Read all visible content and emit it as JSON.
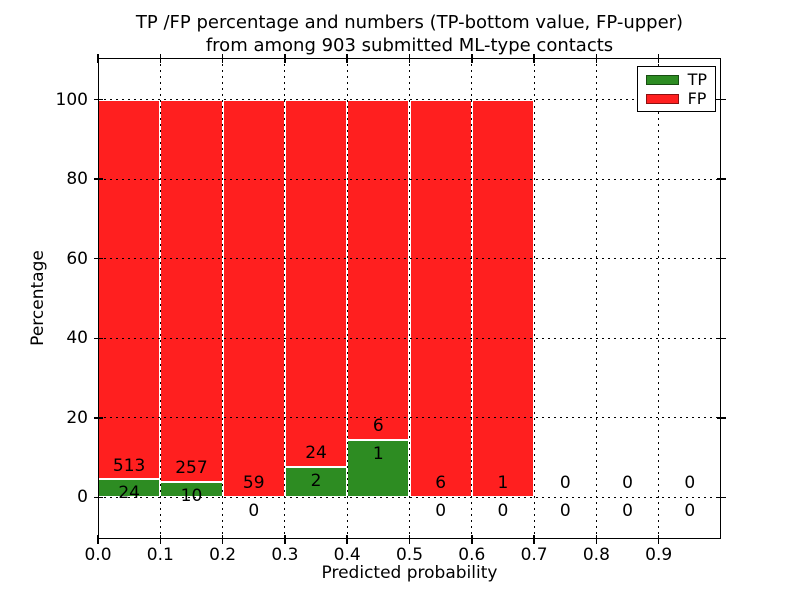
{
  "figure": {
    "title_lines": [
      "TP /FP percentage and numbers (TP-bottom value, FP-upper)",
      "from among 903 submitted ML-type contacts"
    ]
  },
  "chart_data": {
    "type": "bar",
    "stacked": true,
    "normalized_to_percent": true,
    "title": "TP /FP percentage and numbers (TP-bottom value, FP-upper) from among 903 submitted ML-type contacts",
    "total_contacts": 903,
    "xlabel": "Predicted probability",
    "ylabel": "Percentage",
    "xlim": [
      0.0,
      1.0
    ],
    "ylim": [
      -10.5,
      110.5
    ],
    "x_tick_values": [
      0.0,
      0.1,
      0.2,
      0.3,
      0.4,
      0.5,
      0.6,
      0.7,
      0.8,
      0.9
    ],
    "x_tick_labels": [
      "0.0",
      "0.1",
      "0.2",
      "0.3",
      "0.4",
      "0.5",
      "0.6",
      "0.7",
      "0.8",
      "0.9"
    ],
    "y_tick_values": [
      0,
      20,
      40,
      60,
      80,
      100
    ],
    "y_tick_labels": [
      "0",
      "20",
      "40",
      "60",
      "80",
      "100"
    ],
    "grid": {
      "style": "dotted",
      "color": "#000000",
      "drawn_above_bars": true
    },
    "colors": {
      "tp": "#2d8c22",
      "fp": "#ff1f1f",
      "text": "#000000",
      "background": "#ffffff"
    },
    "legend": {
      "position": "upper-right",
      "entries": [
        {
          "label": "TP",
          "color": "#2d8c22"
        },
        {
          "label": "FP",
          "color": "#ff1f1f"
        }
      ]
    },
    "bins": [
      {
        "x_range": [
          0.0,
          0.1
        ],
        "tp_count": 24,
        "fp_count": 513
      },
      {
        "x_range": [
          0.1,
          0.2
        ],
        "tp_count": 10,
        "fp_count": 257
      },
      {
        "x_range": [
          0.2,
          0.3
        ],
        "tp_count": 0,
        "fp_count": 59
      },
      {
        "x_range": [
          0.3,
          0.4
        ],
        "tp_count": 2,
        "fp_count": 24
      },
      {
        "x_range": [
          0.4,
          0.5
        ],
        "tp_count": 1,
        "fp_count": 6
      },
      {
        "x_range": [
          0.5,
          0.6
        ],
        "tp_count": 0,
        "fp_count": 6
      },
      {
        "x_range": [
          0.6,
          0.7
        ],
        "tp_count": 0,
        "fp_count": 1
      },
      {
        "x_range": [
          0.7,
          0.8
        ],
        "tp_count": 0,
        "fp_count": 0
      },
      {
        "x_range": [
          0.8,
          0.9
        ],
        "tp_count": 0,
        "fp_count": 0
      },
      {
        "x_range": [
          0.9,
          1.0
        ],
        "tp_count": 0,
        "fp_count": 0
      }
    ]
  }
}
